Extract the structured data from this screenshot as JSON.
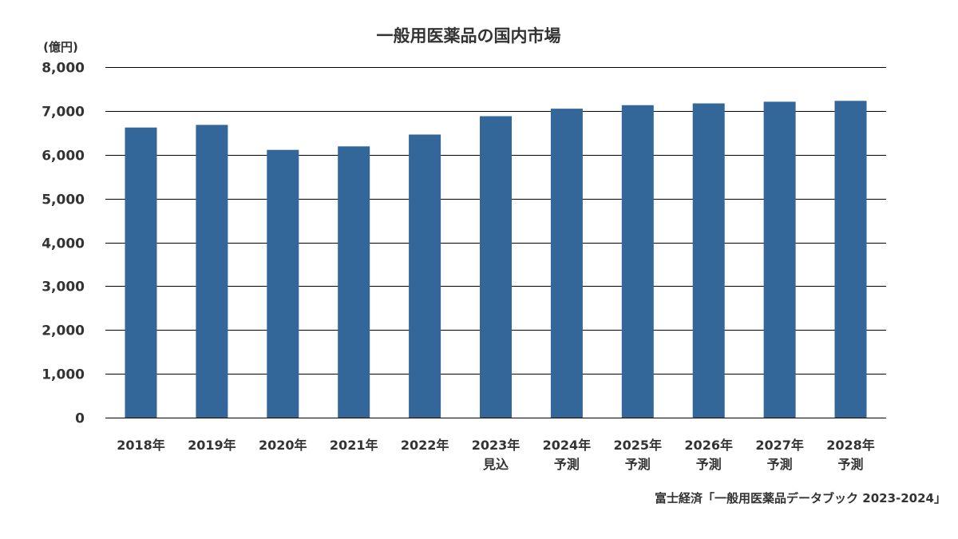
{
  "chart_data": {
    "type": "bar",
    "title": "一般用医薬品の国内市場",
    "ylabel": "(億円)",
    "xlabel": "",
    "ylim": [
      0,
      8000
    ],
    "yticks": [
      0,
      1000,
      2000,
      3000,
      4000,
      5000,
      6000,
      7000,
      8000
    ],
    "ytick_labels": [
      "0",
      "1,000",
      "2,000",
      "3,000",
      "4,000",
      "5,000",
      "6,000",
      "7,000",
      "8,000"
    ],
    "grid": true,
    "categories": [
      [
        "2018年"
      ],
      [
        "2019年"
      ],
      [
        "2020年"
      ],
      [
        "2021年"
      ],
      [
        "2022年"
      ],
      [
        "2023年",
        "見込"
      ],
      [
        "2024年",
        "予測"
      ],
      [
        "2025年",
        "予測"
      ],
      [
        "2026年",
        "予測"
      ],
      [
        "2027年",
        "予測"
      ],
      [
        "2028年",
        "予測"
      ]
    ],
    "values": [
      6620,
      6680,
      6110,
      6190,
      6460,
      6880,
      7050,
      7130,
      7170,
      7210,
      7230
    ],
    "bar_color": "#336699",
    "source": "富士経済「一般用医薬品データブック 2023-2024」"
  }
}
